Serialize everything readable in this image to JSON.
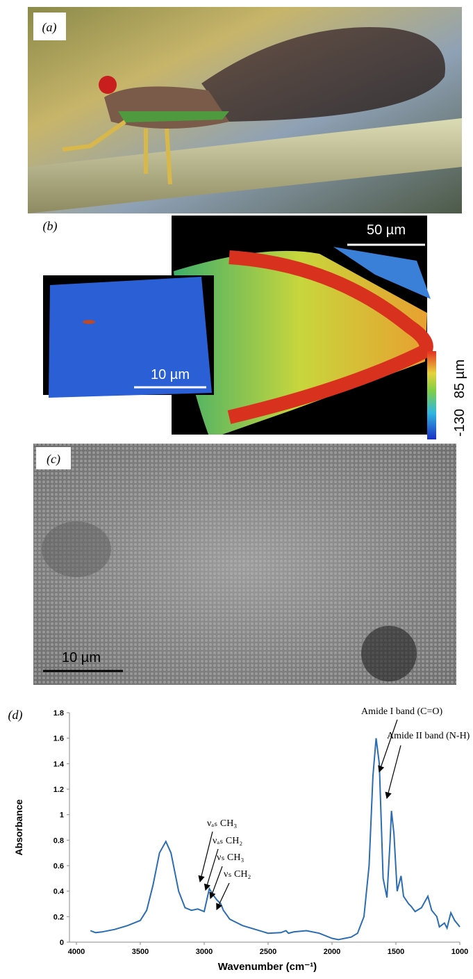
{
  "panels": {
    "labels": [
      "(a)",
      "(b)",
      "(c)",
      "(d)"
    ],
    "b": {
      "scale_main": "50 µm",
      "scale_inset": "10 µm",
      "colorbar_max": "85 µm",
      "colorbar_min": "-130"
    },
    "c": {
      "scale": "10 µm"
    }
  },
  "chart_data": {
    "type": "line",
    "x_label": "Wavenumber (cm⁻¹)",
    "y_label": "Absorbance",
    "xlim": [
      4000,
      1000
    ],
    "ylim": [
      0,
      1.8
    ],
    "xticks": [
      4000,
      3500,
      3000,
      2500,
      2000,
      1500,
      1000
    ],
    "yticks": [
      0,
      0.2,
      0.4,
      0.6,
      0.8,
      1,
      1.2,
      1.4,
      1.6,
      1.8
    ],
    "color": "#2a6db3",
    "annotations": [
      "Amide I band (C=O)",
      "Amide II band (N-H)",
      "νₐₛ CH₃",
      "νₐₛ CH₂",
      "νₛ CH₃",
      "νₛ CH₂"
    ],
    "x": [
      3890,
      3850,
      3800,
      3700,
      3600,
      3500,
      3450,
      3400,
      3350,
      3300,
      3260,
      3200,
      3150,
      3100,
      3050,
      3000,
      2960,
      2930,
      2900,
      2870,
      2850,
      2800,
      2700,
      2600,
      2500,
      2400,
      2360,
      2340,
      2300,
      2200,
      2100,
      2000,
      1950,
      1850,
      1800,
      1750,
      1710,
      1680,
      1655,
      1630,
      1600,
      1570,
      1545,
      1535,
      1515,
      1490,
      1460,
      1440,
      1400,
      1380,
      1350,
      1300,
      1250,
      1220,
      1180,
      1160,
      1120,
      1100,
      1070,
      1040,
      1000
    ],
    "values": [
      0.09,
      0.075,
      0.08,
      0.1,
      0.13,
      0.17,
      0.25,
      0.45,
      0.7,
      0.79,
      0.7,
      0.4,
      0.27,
      0.25,
      0.26,
      0.24,
      0.42,
      0.37,
      0.33,
      0.3,
      0.25,
      0.18,
      0.13,
      0.1,
      0.07,
      0.075,
      0.09,
      0.07,
      0.08,
      0.09,
      0.07,
      0.03,
      0.02,
      0.04,
      0.07,
      0.2,
      0.6,
      1.3,
      1.6,
      1.4,
      0.5,
      0.35,
      0.8,
      1.03,
      0.85,
      0.4,
      0.52,
      0.36,
      0.3,
      0.28,
      0.24,
      0.27,
      0.36,
      0.25,
      0.2,
      0.12,
      0.15,
      0.11,
      0.23,
      0.17,
      0.12
    ]
  }
}
